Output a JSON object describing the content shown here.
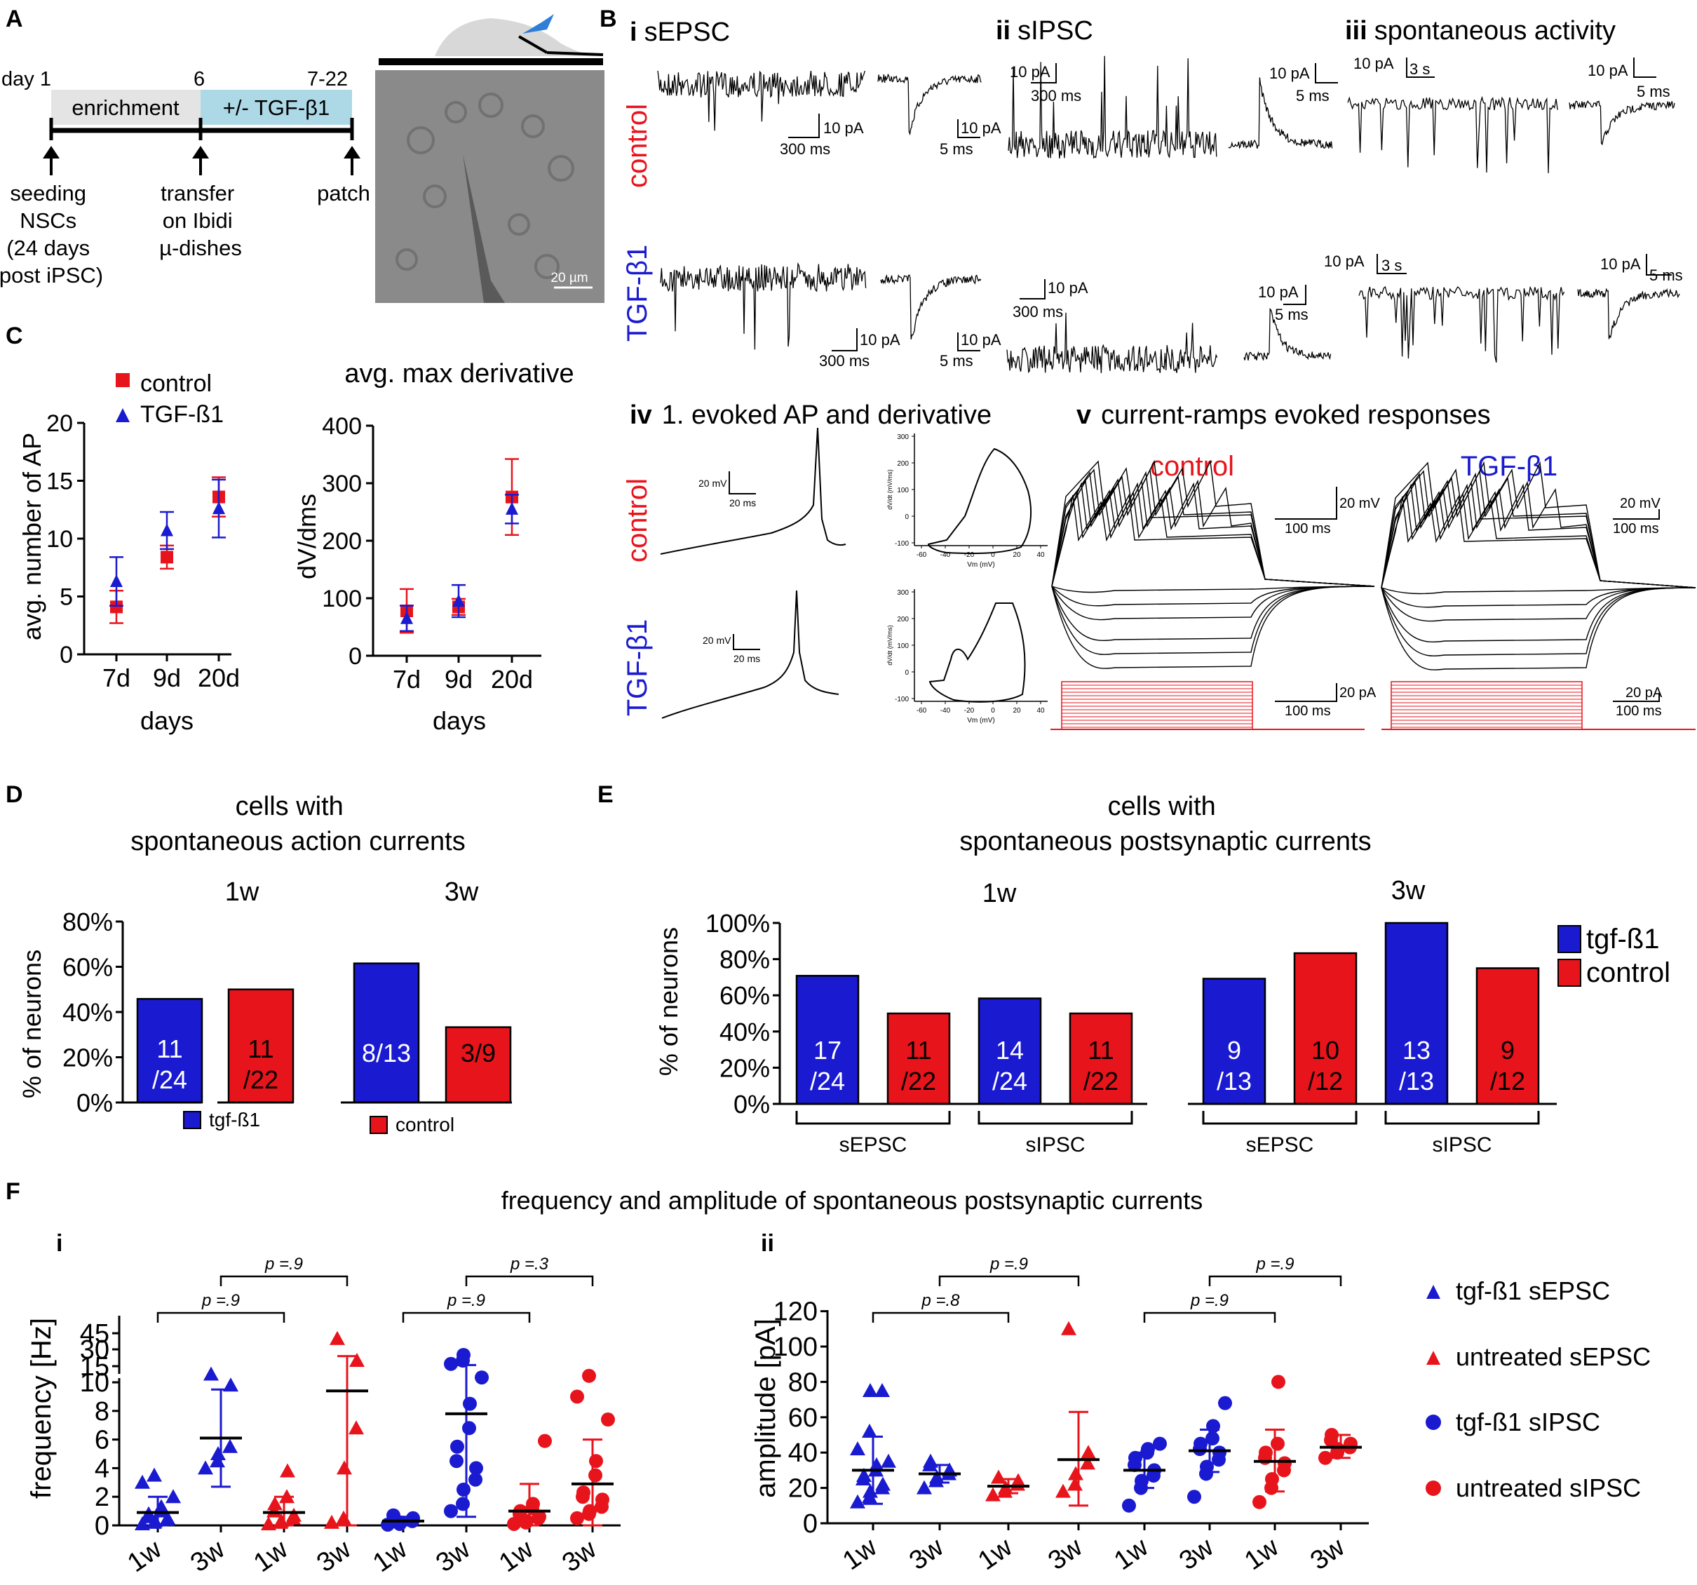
{
  "panelA": {
    "letter": "A",
    "day1": "day 1",
    "day6": "6",
    "day722": "7-22",
    "enrichment": "enrichment",
    "tgf": "+/- TGF-β1",
    "seeding": [
      "seeding",
      "NSCs",
      "(24 days",
      "post iPSC)"
    ],
    "transfer": [
      "transfer",
      "on Ibidi",
      "µ-dishes"
    ],
    "patch": "patch",
    "scalebar": "20 µm"
  },
  "panelB": {
    "letter": "B",
    "i_num": "i",
    "i_title": "sEPSC",
    "ii_num": "ii",
    "ii_title": "sIPSC",
    "iii_num": "iii",
    "iii_title": "spontaneous activity",
    "control": "control",
    "tgf": "TGF-β1",
    "iv_num": "iv",
    "iv_title": "1. evoked AP and derivative",
    "v_num": "v",
    "v_title": "current-ramps evoked responses",
    "v_control": "control",
    "v_tgf": "TGF-β1",
    "scale": {
      "pa10": "10 pA",
      "ms300": "300 ms",
      "ms5": "5 ms",
      "s3": "3 s",
      "mv20": "20 mV",
      "ms20": "20 ms",
      "ms100": "100 ms",
      "pa20": "20 pA"
    },
    "phase": {
      "ylabel": "dV/dt (mV/ms)",
      "xlabel": "Vm (mV)",
      "yticks": [
        "300",
        "200",
        "100",
        "0",
        "-100"
      ],
      "xticks": [
        "-60",
        "-40",
        "-20",
        "0",
        "20",
        "40"
      ]
    }
  },
  "chart_data": [
    {
      "id": "C-left",
      "type": "scatter",
      "title": "",
      "xlabel": "days",
      "ylabel": "avg. number of AP",
      "categories": [
        "7d",
        "9d",
        "20d"
      ],
      "ylim": [
        0,
        20
      ],
      "yticks": [
        "0",
        "5",
        "10",
        "15",
        "20"
      ],
      "series": [
        {
          "name": "control",
          "color": "#e8141c",
          "marker": "square",
          "values": [
            4.1,
            8.4,
            13.6
          ],
          "err": [
            1.4,
            1.0,
            1.7
          ]
        },
        {
          "name": "TGF-ß1",
          "color": "#1a1ad0",
          "marker": "triangle",
          "values": [
            6.3,
            10.7,
            12.6
          ],
          "err": [
            2.1,
            1.6,
            2.5
          ]
        }
      ],
      "legend": [
        "control",
        "TGF-ß1"
      ]
    },
    {
      "id": "C-right",
      "type": "scatter",
      "title": "avg. max derivative",
      "xlabel": "days",
      "ylabel": "dV/dms",
      "categories": [
        "7d",
        "9d",
        "20d"
      ],
      "ylim": [
        0,
        400
      ],
      "yticks": [
        "0",
        "100",
        "200",
        "300",
        "400"
      ],
      "series": [
        {
          "name": "control",
          "color": "#e8141c",
          "marker": "square",
          "values": [
            78,
            85,
            276
          ],
          "err": [
            38,
            14,
            66
          ]
        },
        {
          "name": "TGF-ß1",
          "color": "#1a1ad0",
          "marker": "triangle",
          "values": [
            65,
            95,
            255
          ],
          "err": [
            22,
            28,
            25
          ]
        }
      ]
    },
    {
      "id": "D",
      "type": "bar",
      "title": "cells with spontaneous action currents",
      "title_lines": [
        "cells with",
        "spontaneous action currents"
      ],
      "ylabel": "% of neurons",
      "ylim": [
        0,
        80
      ],
      "yticks": [
        "0%",
        "20%",
        "40%",
        "60%",
        "80%"
      ],
      "groups": [
        "1w",
        "3w"
      ],
      "bars": [
        {
          "group": "1w",
          "series": "tgf-ß1",
          "value": 45.8,
          "label": [
            "11",
            "/24"
          ]
        },
        {
          "group": "1w",
          "series": "control",
          "value": 50.0,
          "label": [
            "11",
            "/22"
          ]
        },
        {
          "group": "3w",
          "series": "tgf-ß1",
          "value": 61.5,
          "label": [
            "8/13"
          ]
        },
        {
          "group": "3w",
          "series": "control",
          "value": 33.3,
          "label": [
            "3/9"
          ]
        }
      ],
      "legend": [
        "tgf-ß1",
        "control"
      ]
    },
    {
      "id": "E",
      "type": "bar",
      "title": "cells with spontaneous postsynaptic currents",
      "title_lines": [
        "cells with",
        "spontaneous postsynaptic currents"
      ],
      "ylabel": "% of neurons",
      "ylim": [
        0,
        100
      ],
      "yticks": [
        "0%",
        "20%",
        "40%",
        "60%",
        "80%",
        "100%"
      ],
      "groups": [
        "1w",
        "3w"
      ],
      "subgroups": [
        "sEPSC",
        "sIPSC",
        "sEPSC",
        "sIPSC"
      ],
      "bars": [
        {
          "group": "1w",
          "sub": "sEPSC",
          "series": "tgf-ß1",
          "value": 70.8,
          "label": [
            "17",
            "/24"
          ]
        },
        {
          "group": "1w",
          "sub": "sEPSC",
          "series": "control",
          "value": 50.0,
          "label": [
            "11",
            "/22"
          ]
        },
        {
          "group": "1w",
          "sub": "sIPSC",
          "series": "tgf-ß1",
          "value": 58.3,
          "label": [
            "14",
            "/24"
          ]
        },
        {
          "group": "1w",
          "sub": "sIPSC",
          "series": "control",
          "value": 50.0,
          "label": [
            "11",
            "/22"
          ]
        },
        {
          "group": "3w",
          "sub": "sEPSC",
          "series": "tgf-ß1",
          "value": 69.2,
          "label": [
            "9",
            "/13"
          ]
        },
        {
          "group": "3w",
          "sub": "sEPSC",
          "series": "control",
          "value": 83.3,
          "label": [
            "10",
            "/12"
          ]
        },
        {
          "group": "3w",
          "sub": "sIPSC",
          "series": "tgf-ß1",
          "value": 100.0,
          "label": [
            "13",
            "/13"
          ]
        },
        {
          "group": "3w",
          "sub": "sIPSC",
          "series": "control",
          "value": 75.0,
          "label": [
            "9",
            "/12"
          ]
        }
      ],
      "legend": [
        "tgf-ß1",
        "control"
      ]
    },
    {
      "id": "F-i",
      "type": "scatter",
      "xlabel": "",
      "ylabel": "frequency [Hz]",
      "categories": [
        "1w",
        "3w",
        "1w",
        "3w",
        "1w",
        "3w",
        "1w",
        "3w"
      ],
      "yticks": [
        "0",
        "2",
        "4",
        "6",
        "8",
        "10",
        "15",
        "30",
        "45"
      ],
      "groups": [
        {
          "series": "tgf-ß1 sEPSC",
          "marker": "triangle",
          "color": "#1a1ad0",
          "mean": 0.9,
          "sd": [
            0,
            2.0
          ],
          "points": [
            0.1,
            0.2,
            0.3,
            0.4,
            0.5,
            0.6,
            0.8,
            1.0,
            1.3,
            2.0,
            3.0,
            3.5
          ]
        },
        {
          "series": "tgf-ß1 sEPSC",
          "marker": "triangle",
          "color": "#1a1ad0",
          "mean": 6.1,
          "sd": [
            2.7,
            9.5
          ],
          "points": [
            4.0,
            4.5,
            5.0,
            5.5,
            9.8,
            12.5
          ]
        },
        {
          "series": "untreated sEPSC",
          "marker": "triangle",
          "color": "#e8141c",
          "mean": 0.9,
          "sd": [
            0,
            2.0
          ],
          "points": [
            0.1,
            0.2,
            0.3,
            0.5,
            0.7,
            1.0,
            1.5,
            2.0,
            3.8
          ]
        },
        {
          "series": "untreated sEPSC",
          "marker": "triangle",
          "color": "#e8141c",
          "mean": 9.4,
          "sd": [
            0,
            24
          ],
          "points": [
            0.2,
            0.5,
            4.0,
            6.8,
            20.0,
            40.0
          ]
        },
        {
          "series": "tgf-ß1 sIPSC",
          "marker": "circle",
          "color": "#1a1ad0",
          "mean": 0.3,
          "sd": [
            0,
            0.6
          ],
          "points": [
            0.05,
            0.1,
            0.2,
            0.3,
            0.5,
            0.7
          ]
        },
        {
          "series": "tgf-ß1 sIPSC",
          "marker": "circle",
          "color": "#1a1ad0",
          "mean": 7.8,
          "sd": [
            0.6,
            16
          ],
          "points": [
            1.0,
            1.5,
            2.5,
            3.2,
            4.0,
            4.5,
            5.5,
            6.8,
            8.5,
            11.5,
            17,
            20,
            25
          ]
        },
        {
          "series": "untreated sIPSC",
          "marker": "circle",
          "color": "#e8141c",
          "mean": 1.0,
          "sd": [
            0,
            2.9
          ],
          "points": [
            0.1,
            0.2,
            0.3,
            0.5,
            0.6,
            0.8,
            1.0,
            1.2,
            1.5,
            5.9
          ]
        },
        {
          "series": "untreated sIPSC",
          "marker": "circle",
          "color": "#e8141c",
          "mean": 2.9,
          "sd": [
            0,
            6.0
          ],
          "points": [
            0.5,
            0.8,
            1.0,
            1.3,
            1.8,
            2.0,
            2.3,
            3.5,
            4.5,
            7.4,
            9.0,
            12.0
          ]
        }
      ],
      "comparisons": [
        {
          "from": 1,
          "to": 3,
          "label": "p =.9"
        },
        {
          "from": 0,
          "to": 2,
          "label": "p =.9"
        },
        {
          "from": 5,
          "to": 7,
          "label": "p =.3"
        },
        {
          "from": 4,
          "to": 6,
          "label": "p =.9"
        }
      ]
    },
    {
      "id": "F-ii",
      "type": "scatter",
      "xlabel": "",
      "ylabel": "amplitude [pA]",
      "categories": [
        "1w",
        "3w",
        "1w",
        "3w",
        "1w",
        "3w",
        "1w",
        "3w"
      ],
      "ylim": [
        0,
        120
      ],
      "yticks": [
        "0",
        "20",
        "40",
        "60",
        "80",
        "100",
        "120"
      ],
      "groups": [
        {
          "series": "tgf-ß1 sEPSC",
          "marker": "triangle",
          "color": "#1a1ad0",
          "mean": 30,
          "sd": [
            11,
            49
          ],
          "points": [
            12,
            15,
            18,
            20,
            22,
            25,
            27,
            30,
            33,
            35,
            42,
            52,
            75,
            75
          ]
        },
        {
          "series": "tgf-ß1 sEPSC",
          "marker": "triangle",
          "color": "#1a1ad0",
          "mean": 28,
          "sd": [
            23,
            33
          ],
          "points": [
            20,
            24,
            26,
            28,
            30,
            33,
            35
          ]
        },
        {
          "series": "untreated sEPSC",
          "marker": "triangle",
          "color": "#e8141c",
          "mean": 21,
          "sd": [
            17,
            25
          ],
          "points": [
            16,
            18,
            20,
            22,
            24,
            26
          ]
        },
        {
          "series": "untreated sEPSC",
          "marker": "triangle",
          "color": "#e8141c",
          "mean": 36,
          "sd": [
            10,
            63
          ],
          "points": [
            18,
            22,
            28,
            34,
            40,
            110
          ]
        },
        {
          "series": "tgf-ß1 sIPSC",
          "marker": "circle",
          "color": "#1a1ad0",
          "mean": 30,
          "sd": [
            20,
            40
          ],
          "points": [
            10,
            20,
            24,
            27,
            30,
            33,
            37,
            40,
            42,
            45
          ]
        },
        {
          "series": "tgf-ß1 sIPSC",
          "marker": "circle",
          "color": "#1a1ad0",
          "mean": 41,
          "sd": [
            29,
            53
          ],
          "points": [
            15,
            28,
            32,
            36,
            40,
            42,
            45,
            48,
            55,
            68
          ]
        },
        {
          "series": "untreated sIPSC",
          "marker": "circle",
          "color": "#e8141c",
          "mean": 35,
          "sd": [
            18,
            53
          ],
          "points": [
            12,
            20,
            25,
            30,
            34,
            37,
            40,
            45,
            80
          ]
        },
        {
          "series": "untreated sIPSC",
          "marker": "circle",
          "color": "#e8141c",
          "mean": 43,
          "sd": [
            37,
            50
          ],
          "points": [
            37,
            40,
            42,
            43,
            45,
            47,
            50
          ]
        }
      ],
      "comparisons": [
        {
          "from": 1,
          "to": 3,
          "label": "p =.9"
        },
        {
          "from": 0,
          "to": 2,
          "label": "p =.8"
        },
        {
          "from": 5,
          "to": 7,
          "label": "p =.9"
        },
        {
          "from": 4,
          "to": 6,
          "label": "p =.9"
        }
      ]
    }
  ],
  "panelC": {
    "letter": "C"
  },
  "panelD": {
    "letter": "D",
    "legend_tgf": "tgf-ß1",
    "legend_ctrl": "control"
  },
  "panelE": {
    "letter": "E",
    "legend_tgf": "tgf-ß1",
    "legend_ctrl": "control"
  },
  "panelF": {
    "letter": "F",
    "title": "frequency and amplitude of spontaneous postsynaptic currents",
    "i_label": "i",
    "ii_label": "ii",
    "legend": [
      "tgf-ß1 sEPSC",
      "untreated sEPSC",
      "tgf-ß1 sIPSC",
      "untreated sIPSC"
    ]
  },
  "colors": {
    "red": "#e8141c",
    "blue": "#1a1ad0",
    "lightblue": "#add8e6",
    "grey": "#e4e4e4"
  }
}
